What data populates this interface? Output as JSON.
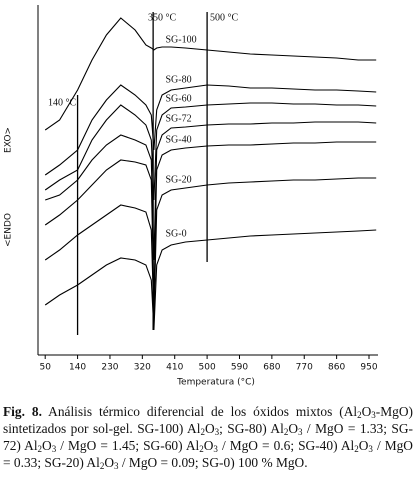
{
  "chart_data": {
    "type": "line",
    "x_label": "Temperatura (°C)",
    "y_labels": [
      "<ENDO",
      "EXO>"
    ],
    "x": [
      50,
      90,
      140,
      180,
      220,
      260,
      300,
      330,
      345,
      352,
      360,
      375,
      400,
      440,
      500,
      560,
      620,
      680,
      740,
      800,
      860,
      920,
      970
    ],
    "series": [
      {
        "name": "SG-100",
        "color": "#000000",
        "values": [
          225,
          235,
          265,
          295,
          320,
          337,
          325,
          310,
          307,
          305,
          307,
          308,
          308,
          307,
          305,
          303,
          301,
          300,
          299,
          298,
          297,
          295,
          295
        ]
      },
      {
        "name": "SG-80",
        "color": "#000000",
        "values": [
          180,
          190,
          205,
          235,
          255,
          270,
          260,
          250,
          240,
          205,
          245,
          260,
          265,
          267,
          270,
          269,
          267,
          267,
          266,
          265,
          265,
          264,
          263
        ]
      },
      {
        "name": "SG-60",
        "color": "#000000",
        "values": [
          165,
          175,
          185,
          215,
          235,
          250,
          240,
          230,
          215,
          155,
          225,
          240,
          247,
          248,
          250,
          251,
          252,
          252,
          251,
          251,
          250,
          250,
          249
        ]
      },
      {
        "name": "SG-72",
        "color": "#000000",
        "values": [
          155,
          160,
          175,
          195,
          210,
          220,
          215,
          210,
          195,
          95,
          205,
          220,
          227,
          228,
          230,
          231,
          231,
          232,
          232,
          233,
          233,
          233,
          232
        ]
      },
      {
        "name": "SG-40",
        "color": "#000000",
        "values": [
          130,
          140,
          155,
          170,
          185,
          195,
          193,
          190,
          175,
          55,
          185,
          200,
          205,
          207,
          209,
          210,
          210,
          211,
          212,
          212,
          213,
          213,
          213
        ]
      },
      {
        "name": "SG-20",
        "color": "#000000",
        "values": [
          95,
          105,
          120,
          130,
          140,
          150,
          147,
          143,
          125,
          35,
          145,
          160,
          165,
          167,
          170,
          172,
          173,
          174,
          175,
          175,
          176,
          177,
          177
        ]
      },
      {
        "name": "SG-0",
        "color": "#000000",
        "values": [
          50,
          60,
          70,
          80,
          90,
          97,
          95,
          90,
          75,
          25,
          90,
          105,
          110,
          113,
          115,
          117,
          119,
          120,
          121,
          122,
          123,
          124,
          125
        ]
      }
    ],
    "xlim": [
      30,
      975
    ],
    "xticks": [
      50,
      140,
      230,
      320,
      410,
      500,
      590,
      680,
      770,
      860,
      950
    ],
    "ylim": [
      0,
      350
    ],
    "vlines": [
      {
        "x": 140,
        "label": "140 °C"
      },
      {
        "x": 350,
        "label": "350 °C"
      },
      {
        "x": 500,
        "label": "500 °C"
      }
    ]
  },
  "caption": {
    "label": "Fig. 8.",
    "parts": [
      " Análisis térmico diferencial de los óxidos mixtos (Al",
      {
        "sub": "2"
      },
      "O",
      {
        "sub": "3"
      },
      "-MgO) sintetizados por sol-gel. SG-100) Al",
      {
        "sub": "2"
      },
      "O",
      {
        "sub": "3"
      },
      "; SG-80) Al",
      {
        "sub": "2"
      },
      "O",
      {
        "sub": "3"
      },
      " / MgO = 1.33; SG-72) Al",
      {
        "sub": "2"
      },
      "O",
      {
        "sub": "3"
      },
      " / MgO = 1.45; SG-60) Al",
      {
        "sub": "2"
      },
      "O",
      {
        "sub": "3"
      },
      " / MgO = 0.6; SG-40) Al",
      {
        "sub": "2"
      },
      "O",
      {
        "sub": "3"
      },
      " / MgO = 0.33; SG-20) Al",
      {
        "sub": "2"
      },
      "O",
      {
        "sub": "3"
      },
      " / MgO = 0.09; SG-0) 100 % MgO."
    ]
  }
}
